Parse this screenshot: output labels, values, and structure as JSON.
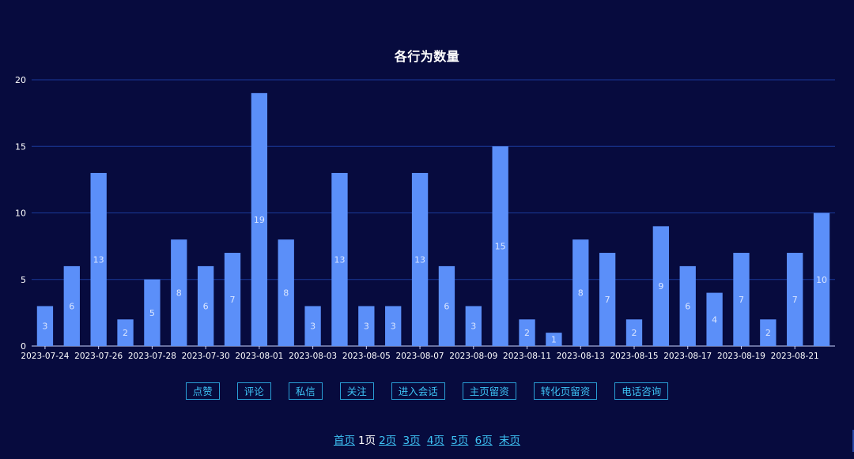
{
  "chart_data": {
    "type": "bar",
    "title": "各行为数量",
    "categories": [
      "2023-07-24",
      "2023-07-25",
      "2023-07-26",
      "2023-07-27",
      "2023-07-28",
      "2023-07-29",
      "2023-07-30",
      "2023-07-31",
      "2023-08-01",
      "2023-08-02",
      "2023-08-03",
      "2023-08-04",
      "2023-08-05",
      "2023-08-06",
      "2023-08-07",
      "2023-08-08",
      "2023-08-09",
      "2023-08-10",
      "2023-08-11",
      "2023-08-12",
      "2023-08-13",
      "2023-08-14",
      "2023-08-15",
      "2023-08-16",
      "2023-08-17",
      "2023-08-18",
      "2023-08-19",
      "2023-08-20",
      "2023-08-21",
      "2023-08-22"
    ],
    "values": [
      3,
      6,
      13,
      2,
      5,
      8,
      6,
      7,
      19,
      8,
      3,
      13,
      3,
      3,
      13,
      6,
      3,
      15,
      2,
      1,
      8,
      7,
      2,
      9,
      6,
      4,
      7,
      2,
      7,
      10
    ],
    "shown_x_labels": [
      "2023-07-24",
      "2023-07-26",
      "2023-07-28",
      "2023-07-30",
      "2023-08-01",
      "2023-08-03",
      "2023-08-05",
      "2023-08-07",
      "2023-08-09",
      "2023-08-11",
      "2023-08-13",
      "2023-08-15",
      "2023-08-17",
      "2023-08-19",
      "2023-08-21"
    ],
    "y_ticks": [
      0,
      5,
      10,
      15,
      20
    ],
    "ylim": [
      0,
      20
    ],
    "xlabel": "",
    "ylabel": "",
    "grid": true,
    "bar_color": "#5b8ff9",
    "bar_label_color": "#dbe6ff",
    "grid_color": "#1a3a9a",
    "axis_color": "#c9d3ff"
  },
  "filters": [
    {
      "label": "点赞"
    },
    {
      "label": "评论"
    },
    {
      "label": "私信"
    },
    {
      "label": "关注"
    },
    {
      "label": "进入会话"
    },
    {
      "label": "主页留资"
    },
    {
      "label": "转化页留资"
    },
    {
      "label": "电话咨询"
    }
  ],
  "pagination": {
    "first": "首页",
    "current": "1页",
    "pages": [
      "2页",
      "3页",
      "4页",
      "5页",
      "6页"
    ],
    "last": "末页"
  },
  "colors": {
    "background": "#070b3e",
    "accent": "#3ec3f5"
  }
}
